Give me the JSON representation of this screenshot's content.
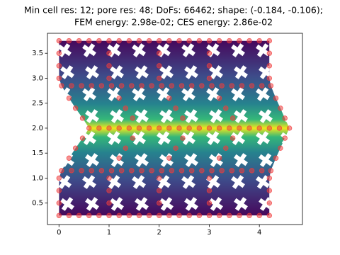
{
  "chart_data": {
    "type": "scatter",
    "title": [
      "Min cell res: 12; pore res: 48; DoFs: 66462; shape: (-0.184, -0.106);",
      "FEM energy: 2.98e-02; CES energy: 2.86e-02"
    ],
    "xlim": [
      -0.23,
      4.86
    ],
    "ylim": [
      0.07,
      3.9
    ],
    "xticks": [
      0,
      1,
      2,
      3,
      4
    ],
    "yticks": [
      0.5,
      {
        "value": 1,
        "label": "1.0"
      },
      1.5,
      {
        "value": 2,
        "label": "2.0"
      },
      2.5,
      {
        "value": 3,
        "label": "3.0"
      },
      3.5
    ],
    "color": "#f03c3c",
    "x": [
      0,
      0,
      0,
      0,
      0.05,
      0.2,
      0.33,
      0.47,
      0.6,
      0.47,
      0.33,
      0.2,
      0.05,
      0,
      0,
      0,
      0,
      1,
      1,
      1,
      1,
      1.05,
      1.2,
      1.33,
      1.47,
      1.6,
      1.47,
      1.33,
      1.2,
      1.05,
      1,
      1,
      1,
      1,
      2,
      2,
      2,
      2,
      2.05,
      2.2,
      2.33,
      2.47,
      2.6,
      2.47,
      2.33,
      2.2,
      2.05,
      2,
      2,
      2,
      2,
      3,
      3,
      3,
      3,
      3.05,
      3.2,
      3.33,
      3.47,
      3.6,
      3.47,
      3.33,
      3.2,
      3.05,
      3,
      3,
      3,
      3,
      4.2,
      4.2,
      4.2,
      4.2,
      4.23,
      4.33,
      4.42,
      4.51,
      4.6,
      4.51,
      4.42,
      4.33,
      4.23,
      4.2,
      4.2,
      4.2,
      4.2,
      0.2,
      0.4,
      0.6,
      0.8,
      1.2,
      1.4,
      1.6,
      1.8,
      2.2,
      2.4,
      2.6,
      2.8,
      3.2,
      3.4,
      3.6,
      3.8,
      4.0,
      0.25,
      0.45,
      0.65,
      0.85,
      1.25,
      1.45,
      1.65,
      1.85,
      2.25,
      2.45,
      2.65,
      2.85,
      3.25,
      3.45,
      3.65,
      3.85,
      4.05,
      0.8,
      1.0,
      1.2,
      1.4,
      1.8,
      2.0,
      2.2,
      2.4,
      2.8,
      3.0,
      3.2,
      3.4,
      3.8,
      4.0,
      4.2,
      4.4,
      0.25,
      0.45,
      0.65,
      0.85,
      1.25,
      1.45,
      1.65,
      1.85,
      2.25,
      2.45,
      2.65,
      2.85,
      3.25,
      3.45,
      3.65,
      3.85,
      4.05,
      0.2,
      0.4,
      0.6,
      0.8,
      1.2,
      1.4,
      1.6,
      1.8,
      2.2,
      2.4,
      2.6,
      2.8,
      3.2,
      3.4,
      3.6,
      3.8,
      4.0
    ],
    "y": [
      0.25,
      0.5,
      0.75,
      1.0,
      1.15,
      1.4,
      1.6,
      1.8,
      2.0,
      2.2,
      2.4,
      2.6,
      2.85,
      3.0,
      3.25,
      3.5,
      3.75,
      0.25,
      0.5,
      0.75,
      1.0,
      1.15,
      1.4,
      1.6,
      1.8,
      2.0,
      2.2,
      2.4,
      2.6,
      2.85,
      3.0,
      3.25,
      3.5,
      3.75,
      0.25,
      0.5,
      0.75,
      1.0,
      1.15,
      1.4,
      1.6,
      1.8,
      2.0,
      2.2,
      2.4,
      2.6,
      2.85,
      3.0,
      3.25,
      3.5,
      3.75,
      0.25,
      0.5,
      0.75,
      1.0,
      1.15,
      1.4,
      1.6,
      1.8,
      2.0,
      2.2,
      2.4,
      2.6,
      2.85,
      3.0,
      3.25,
      3.5,
      3.75,
      0.25,
      0.5,
      0.75,
      1.0,
      1.15,
      1.4,
      1.6,
      1.8,
      2.0,
      2.2,
      2.4,
      2.6,
      2.85,
      3.0,
      3.25,
      3.5,
      3.75,
      0.25,
      0.25,
      0.25,
      0.25,
      0.25,
      0.25,
      0.25,
      0.25,
      0.25,
      0.25,
      0.25,
      0.25,
      0.25,
      0.25,
      0.25,
      0.25,
      0.25,
      1.15,
      1.15,
      1.15,
      1.15,
      1.15,
      1.15,
      1.15,
      1.15,
      1.15,
      1.15,
      1.15,
      1.15,
      1.15,
      1.15,
      1.15,
      1.15,
      1.15,
      2.0,
      2.0,
      2.0,
      2.0,
      2.0,
      2.0,
      2.0,
      2.0,
      2.0,
      2.0,
      2.0,
      2.0,
      2.0,
      2.0,
      2.0,
      2.0,
      2.85,
      2.85,
      2.85,
      2.85,
      2.85,
      2.85,
      2.85,
      2.85,
      2.85,
      2.85,
      2.85,
      2.85,
      2.85,
      2.85,
      2.85,
      2.85,
      2.85,
      3.75,
      3.75,
      3.75,
      3.75,
      3.75,
      3.75,
      3.75,
      3.75,
      3.75,
      3.75,
      3.75,
      3.75,
      3.75,
      3.75,
      3.75,
      3.75,
      3.75
    ]
  }
}
